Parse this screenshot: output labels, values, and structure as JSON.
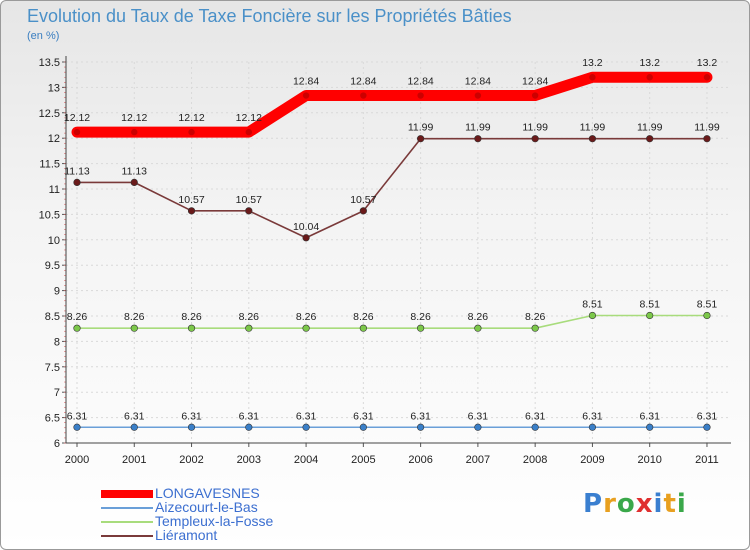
{
  "chart_data": {
    "type": "line",
    "title": "Evolution du Taux de Taxe Foncière sur les Propriétés Bâties",
    "ylabel": "(en %)",
    "xlabel": "",
    "categories": [
      "2000",
      "2001",
      "2002",
      "2003",
      "2004",
      "2005",
      "2006",
      "2007",
      "2008",
      "2009",
      "2010",
      "2011"
    ],
    "yticks": [
      "6",
      "6.5",
      "7",
      "7.5",
      "8",
      "8.5",
      "9",
      "9.5",
      "10",
      "10.5",
      "11",
      "11.5",
      "12",
      "12.5",
      "13",
      "13.5"
    ],
    "ylim": [
      6,
      13.5
    ],
    "series": [
      {
        "name": "LONGAVESNES",
        "color": "#ff0000",
        "bold": true,
        "values": [
          12.12,
          12.12,
          12.12,
          12.12,
          12.84,
          12.84,
          12.84,
          12.84,
          12.84,
          13.2,
          13.2,
          13.2
        ],
        "labels": [
          "12.12",
          "12.12",
          "12.12",
          "12.12",
          "12.84",
          "12.84",
          "12.84",
          "12.84",
          "12.84",
          "13.2",
          "13.2",
          "13.2"
        ]
      },
      {
        "name": "Aizecourt-le-Bas",
        "color": "#6a9fd8",
        "marker": "#3a7fc8",
        "values": [
          6.31,
          6.31,
          6.31,
          6.31,
          6.31,
          6.31,
          6.31,
          6.31,
          6.31,
          6.31,
          6.31,
          6.31
        ],
        "labels": [
          "6.31",
          "6.31",
          "6.31",
          "6.31",
          "6.31",
          "6.31",
          "6.31",
          "6.31",
          "6.31",
          "6.31",
          "6.31",
          "6.31"
        ]
      },
      {
        "name": "Templeux-la-Fosse",
        "color": "#a8dc7c",
        "marker": "#7cc84a",
        "values": [
          8.26,
          8.26,
          8.26,
          8.26,
          8.26,
          8.26,
          8.26,
          8.26,
          8.26,
          8.51,
          8.51,
          8.51
        ],
        "labels": [
          "8.26",
          "8.26",
          "8.26",
          "8.26",
          "8.26",
          "8.26",
          "8.26",
          "8.26",
          "8.26",
          "8.51",
          "8.51",
          "8.51"
        ]
      },
      {
        "name": "Liéramont",
        "color": "#7a3a3a",
        "marker": "#6a1a1a",
        "values": [
          11.13,
          11.13,
          10.57,
          10.57,
          10.04,
          10.57,
          11.99,
          11.99,
          11.99,
          11.99,
          11.99,
          11.99
        ],
        "labels": [
          "11.13",
          "11.13",
          "10.57",
          "10.57",
          "10.04",
          "10.57",
          "11.99",
          "11.99",
          "11.99",
          "11.99",
          "11.99",
          "11.99"
        ]
      }
    ]
  },
  "legend": {
    "items": [
      {
        "label": "LONGAVESNES",
        "color": "#ff0000"
      },
      {
        "label": "Aizecourt-le-Bas",
        "color": "#6a9fd8"
      },
      {
        "label": "Templeux-la-Fosse",
        "color": "#a8dc7c"
      },
      {
        "label": "Liéramont",
        "color": "#7a3a3a"
      }
    ]
  },
  "brand": {
    "letters": [
      "P",
      "r",
      "o",
      "x",
      "i",
      "t",
      "i"
    ],
    "colors": [
      "#3a7fd0",
      "#e8a020",
      "#3aa84a",
      "#e03030",
      "#3a7fd0",
      "#e8a020",
      "#3aa84a"
    ]
  }
}
